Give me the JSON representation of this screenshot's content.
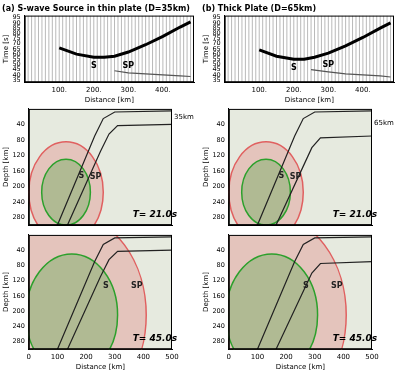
{
  "chart_data": [
    {
      "type": "seismogram",
      "title": "(a) S-wave Source in thin plate (D=35km)",
      "x_label": "Distance [km]",
      "y_label": "Time [s]",
      "xlim": [
        0,
        490
      ],
      "ylim": [
        33,
        97
      ],
      "xticks": [
        {
          "value": 100,
          "label": "100."
        },
        {
          "value": 200,
          "label": "200."
        },
        {
          "value": 300,
          "label": "300."
        },
        {
          "value": 400,
          "label": "400."
        }
      ],
      "yticks": [
        35,
        40,
        45,
        50,
        55,
        60,
        65,
        70,
        75,
        80,
        85,
        90,
        95
      ],
      "stations": [
        10,
        20,
        30,
        40,
        50,
        60,
        70,
        80,
        90,
        100,
        110,
        120,
        130,
        140,
        150,
        160,
        170,
        180,
        190,
        200,
        210,
        220,
        230,
        240,
        250,
        260,
        270,
        280,
        290,
        300,
        310,
        320,
        330,
        340,
        350,
        360,
        370,
        380,
        390,
        400,
        410,
        420,
        430,
        440,
        450,
        460,
        470,
        480
      ],
      "series": [
        {
          "name": "S",
          "color": "#000000",
          "x": [
            100,
            150,
            200,
            230,
            260,
            300,
            350,
            400,
            450,
            480
          ],
          "values": [
            66,
            60,
            57,
            57,
            58,
            62,
            69,
            77,
            86,
            91
          ]
        },
        {
          "name": "SP",
          "color": "#555555",
          "x": [
            260,
            300,
            350,
            400,
            450,
            480
          ],
          "values": [
            44,
            42,
            41,
            40,
            39,
            38.5
          ]
        }
      ]
    },
    {
      "type": "seismogram",
      "title": "(b) Thick Plate (D=65km)",
      "x_label": "Distance [km]",
      "y_label": "Time [s]",
      "xlim": [
        0,
        490
      ],
      "ylim": [
        33,
        97
      ],
      "xticks": [
        {
          "value": 100,
          "label": "100."
        },
        {
          "value": 200,
          "label": "200."
        },
        {
          "value": 300,
          "label": "300."
        },
        {
          "value": 400,
          "label": "400."
        }
      ],
      "yticks": [
        35,
        40,
        45,
        50,
        55,
        60,
        65,
        70,
        75,
        80,
        85,
        90,
        95
      ],
      "stations": [
        10,
        20,
        30,
        40,
        50,
        60,
        70,
        80,
        90,
        100,
        110,
        120,
        130,
        140,
        150,
        160,
        170,
        180,
        190,
        200,
        210,
        220,
        230,
        240,
        250,
        260,
        270,
        280,
        290,
        300,
        310,
        320,
        330,
        340,
        350,
        360,
        370,
        380,
        390,
        400,
        410,
        420,
        430,
        440,
        450,
        460,
        470,
        480
      ],
      "series": [
        {
          "name": "S",
          "color": "#000000",
          "x": [
            100,
            150,
            200,
            230,
            260,
            300,
            350,
            400,
            450,
            480
          ],
          "values": [
            64,
            58,
            55,
            55,
            57,
            61,
            68,
            76,
            85,
            90
          ]
        },
        {
          "name": "SP",
          "color": "#555555",
          "x": [
            250,
            300,
            350,
            400,
            450,
            480
          ],
          "values": [
            45,
            43,
            41,
            40,
            39,
            38
          ]
        }
      ]
    },
    {
      "type": "wavefield",
      "y_label": "Depth [km]",
      "tick_labels": "y",
      "xlim": [
        0,
        500
      ],
      "ylim": [
        0,
        300
      ],
      "xticks": [
        0,
        100,
        200,
        300,
        400,
        500
      ],
      "yticks": [
        40,
        80,
        120,
        160,
        200,
        240,
        280
      ],
      "series": [
        {
          "color": "#222222",
          "x": [
            500,
            300,
            260,
            230,
            100
          ],
          "values": [
            5,
            8,
            25,
            70,
            300
          ]
        },
        {
          "color": "#222222",
          "x": [
            500,
            310,
            280,
            250,
            135
          ],
          "values": [
            40,
            43,
            65,
            110,
            300
          ]
        }
      ],
      "wavefronts": [
        {
          "name": "SP",
          "color": "#e06060",
          "center": [
            130,
            215
          ],
          "radius": 130
        },
        {
          "name": "S",
          "color": "#2ca02c",
          "center": [
            130,
            215
          ],
          "radius": 85
        }
      ],
      "annotations": [
        {
          "text": "T= 21.0s",
          "x": 440,
          "y": 272
        },
        {
          "text": "35km",
          "x": 500,
          "y": 22
        }
      ]
    },
    {
      "type": "wavefield",
      "y_label": "Depth [km]",
      "tick_labels": "y",
      "xlim": [
        0,
        500
      ],
      "ylim": [
        0,
        300
      ],
      "xticks": [
        0,
        100,
        200,
        300,
        400,
        500
      ],
      "yticks": [
        40,
        80,
        120,
        160,
        200,
        240,
        280
      ],
      "series": [
        {
          "color": "#222222",
          "x": [
            500,
            300,
            260,
            230,
            100
          ],
          "values": [
            5,
            8,
            25,
            70,
            300
          ]
        },
        {
          "color": "#222222",
          "x": [
            500,
            320,
            290,
            265,
            165
          ],
          "values": [
            70,
            75,
            100,
            140,
            300
          ]
        }
      ],
      "wavefronts": [
        {
          "name": "SP",
          "color": "#e06060",
          "center": [
            130,
            215
          ],
          "radius": 130
        },
        {
          "name": "S",
          "color": "#2ca02c",
          "center": [
            130,
            215
          ],
          "radius": 85
        }
      ],
      "annotations": [
        {
          "text": "T= 21.0s",
          "x": 440,
          "y": 272
        },
        {
          "text": "65km",
          "x": 500,
          "y": 38
        }
      ]
    },
    {
      "type": "wavefield",
      "x_label": "Distance [km]",
      "y_label": "Depth [km]",
      "xlim": [
        0,
        500
      ],
      "ylim": [
        0,
        300
      ],
      "xticks": [
        0,
        100,
        200,
        300,
        400,
        500
      ],
      "yticks": [
        40,
        80,
        120,
        160,
        200,
        240,
        280
      ],
      "series": [
        {
          "color": "#222222",
          "x": [
            500,
            300,
            260,
            230,
            100
          ],
          "values": [
            5,
            8,
            25,
            70,
            300
          ]
        },
        {
          "color": "#222222",
          "x": [
            500,
            310,
            280,
            250,
            135
          ],
          "values": [
            40,
            43,
            65,
            110,
            300
          ]
        }
      ],
      "wavefronts": [
        {
          "name": "SP",
          "color": "#e06060",
          "center": [
            150,
            210
          ],
          "radius": 260
        },
        {
          "name": "S",
          "color": "#2ca02c",
          "center": [
            150,
            210
          ],
          "radius": 160
        }
      ],
      "annotations": [
        {
          "text": "T= 45.0s",
          "x": 440,
          "y": 272
        }
      ]
    },
    {
      "type": "wavefield",
      "x_label": "Distance [km]",
      "y_label": "Depth [km]",
      "xlim": [
        0,
        500
      ],
      "ylim": [
        0,
        300
      ],
      "xticks": [
        0,
        100,
        200,
        300,
        400,
        500
      ],
      "yticks": [
        40,
        80,
        120,
        160,
        200,
        240,
        280
      ],
      "series": [
        {
          "color": "#222222",
          "x": [
            500,
            300,
            260,
            230,
            100
          ],
          "values": [
            5,
            8,
            25,
            70,
            300
          ]
        },
        {
          "color": "#222222",
          "x": [
            500,
            320,
            290,
            265,
            165
          ],
          "values": [
            70,
            75,
            100,
            140,
            300
          ]
        }
      ],
      "wavefronts": [
        {
          "name": "SP",
          "color": "#e06060",
          "center": [
            150,
            210
          ],
          "radius": 260
        },
        {
          "name": "S",
          "color": "#2ca02c",
          "center": [
            150,
            210
          ],
          "radius": 160
        }
      ],
      "annotations": [
        {
          "text": "T= 45.0s",
          "x": 440,
          "y": 272
        }
      ]
    }
  ]
}
